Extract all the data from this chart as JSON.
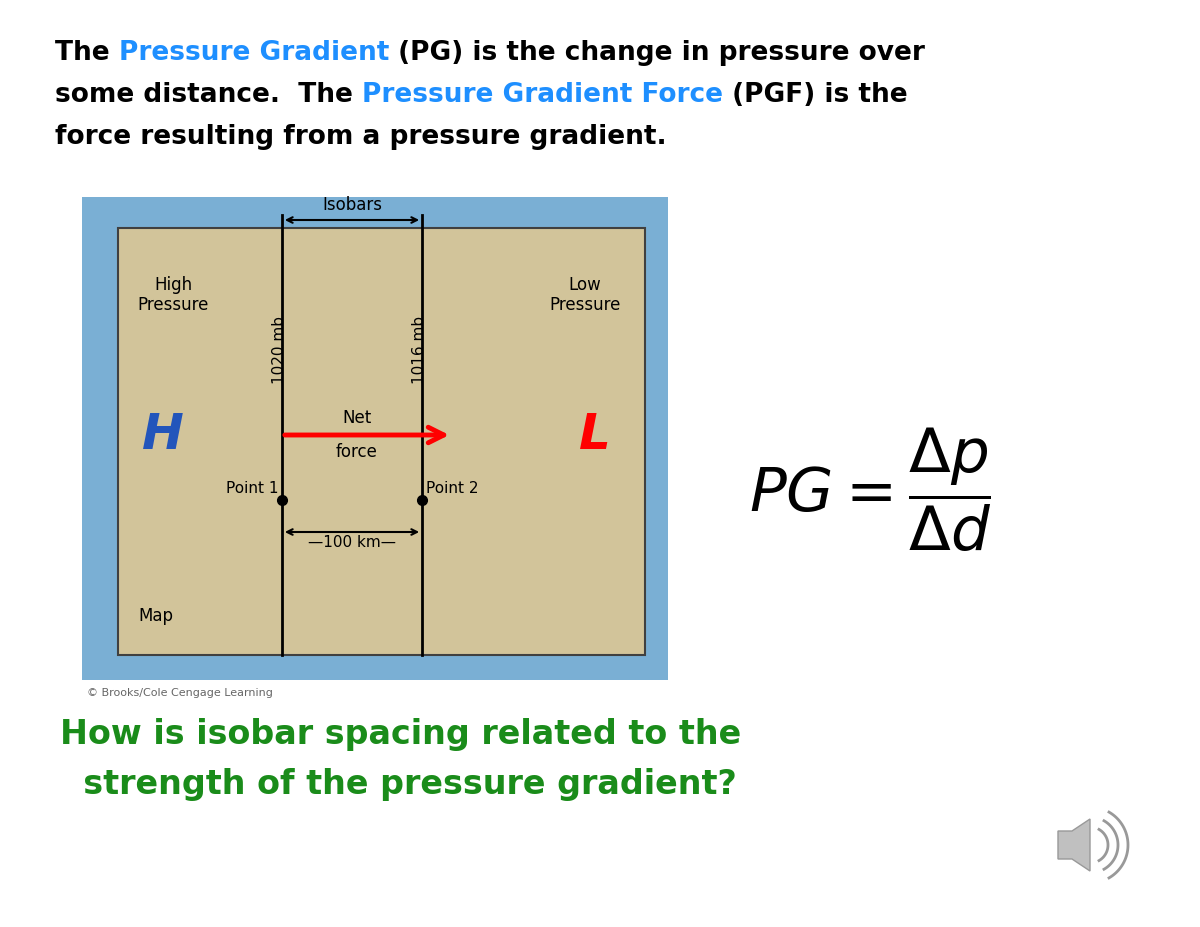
{
  "bg_color": "#ffffff",
  "title_lines": [
    [
      {
        "text": "The ",
        "color": "#000000"
      },
      {
        "text": "Pressure Gradient",
        "color": "#1e8fff"
      },
      {
        "text": " (PG) is the change in pressure over",
        "color": "#000000"
      }
    ],
    [
      {
        "text": "some distance.  The ",
        "color": "#000000"
      },
      {
        "text": "Pressure Gradient Force",
        "color": "#1e8fff"
      },
      {
        "text": " (PGF) is the",
        "color": "#000000"
      }
    ],
    [
      {
        "text": "force resulting from a pressure gradient.",
        "color": "#000000"
      }
    ]
  ],
  "question_line1": "How is isobar spacing related to the",
  "question_line2": "  strength of the pressure gradient?",
  "question_color": "#1a8c1a",
  "outer_box_color": "#7aafd4",
  "inner_box_color": "#d2c49a",
  "title_fontsize": 19,
  "question_fontsize": 24,
  "copyright_text": "© Brooks/Cole Cengage Learning"
}
